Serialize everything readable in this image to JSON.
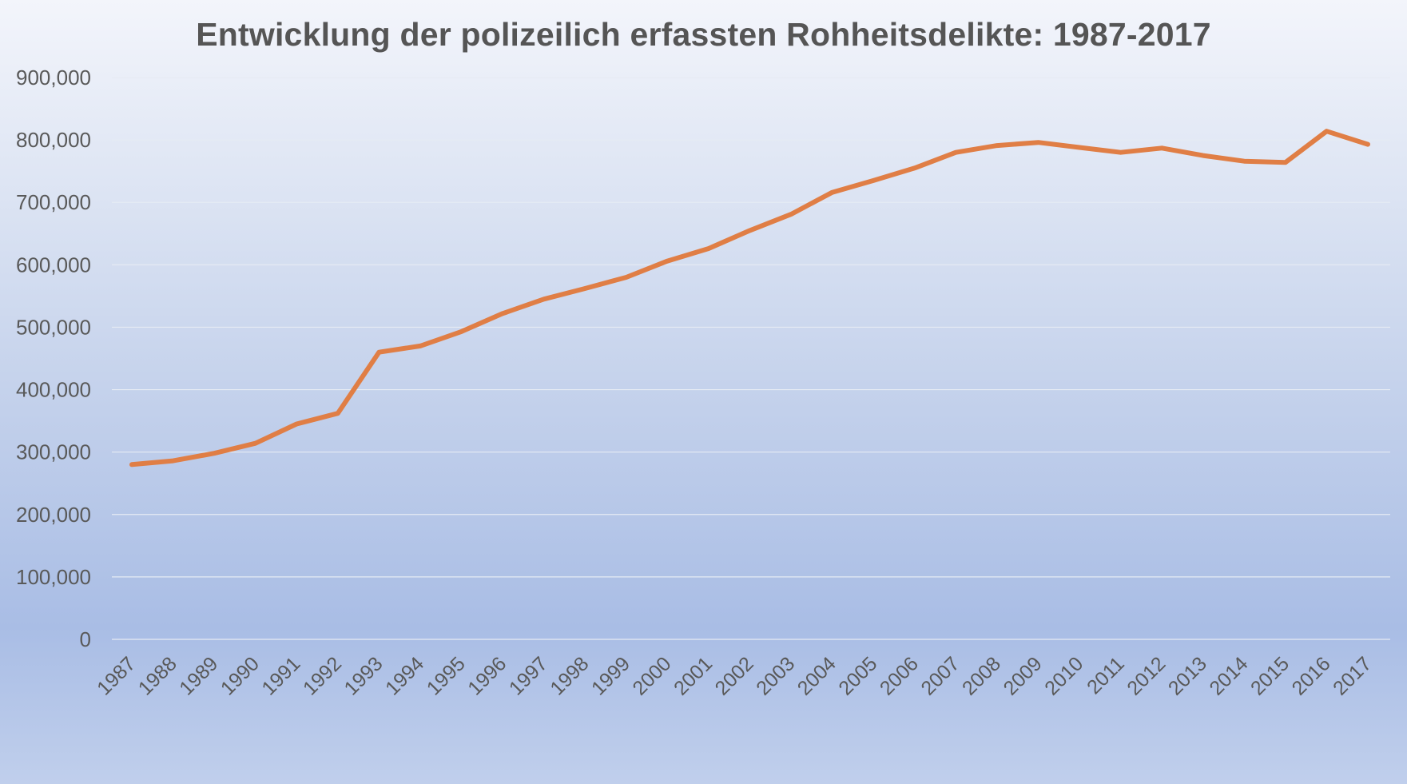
{
  "chart_data": {
    "type": "line",
    "title": "Entwicklung der polizeilich erfassten Rohheitsdelikte: 1987-2017",
    "xlabel": "",
    "ylabel": "",
    "ylim": [
      0,
      900000
    ],
    "yticks": [
      "0",
      "100,000",
      "200,000",
      "300,000",
      "400,000",
      "500,000",
      "600,000",
      "700,000",
      "800,000",
      "900,000"
    ],
    "grid": true,
    "legend": "none",
    "categories": [
      "1987",
      "1988",
      "1989",
      "1990",
      "1991",
      "1992",
      "1993",
      "1994",
      "1995",
      "1996",
      "1997",
      "1998",
      "1999",
      "2000",
      "2001",
      "2002",
      "2003",
      "2004",
      "2005",
      "2006",
      "2007",
      "2008",
      "2009",
      "2010",
      "2011",
      "2012",
      "2013",
      "2014",
      "2015",
      "2016",
      "2017"
    ],
    "series": [
      {
        "color": "#e07e45",
        "values": [
          280000,
          286000,
          298000,
          314000,
          345000,
          362000,
          460000,
          470000,
          493000,
          522000,
          545000,
          562000,
          580000,
          606000,
          626000,
          655000,
          681000,
          716000,
          735000,
          755000,
          780000,
          791000,
          796000,
          788000,
          780000,
          787000,
          775000,
          766000,
          764000,
          814000,
          793000
        ]
      }
    ]
  }
}
